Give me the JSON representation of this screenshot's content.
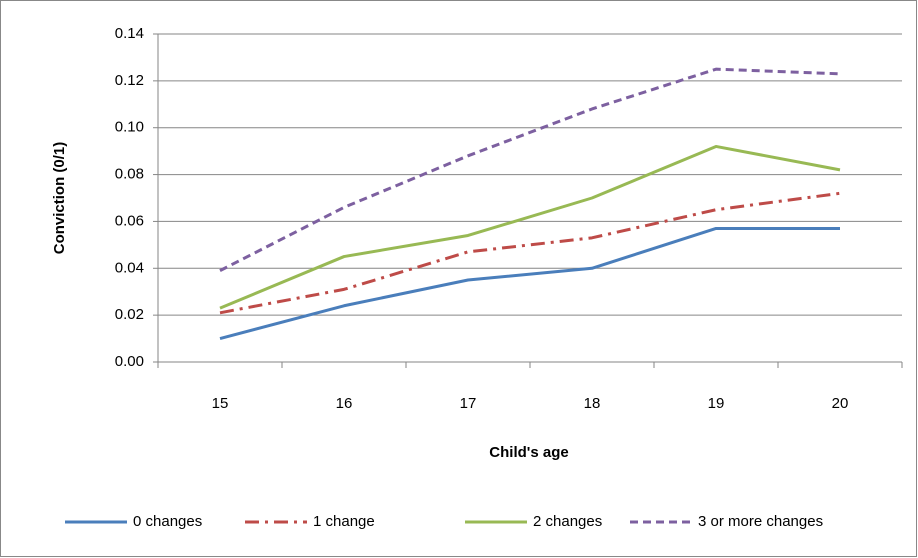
{
  "chart_data": {
    "type": "line",
    "x_label": "Child's age",
    "y_label": "Conviction (0/1)",
    "categories": [
      "15",
      "16",
      "17",
      "18",
      "19",
      "20"
    ],
    "series": [
      {
        "name": "0 changes",
        "color": "#4a7ebb",
        "dash": "solid",
        "values": [
          0.01,
          0.024,
          0.035,
          0.04,
          0.057,
          0.057
        ]
      },
      {
        "name": "1 change",
        "color": "#be4b48",
        "dash": "dashdot",
        "values": [
          0.021,
          0.031,
          0.047,
          0.053,
          0.065,
          0.072
        ]
      },
      {
        "name": "2 changes",
        "color": "#98b954",
        "dash": "solid",
        "values": [
          0.023,
          0.045,
          0.054,
          0.07,
          0.092,
          0.082
        ]
      },
      {
        "name": "3 or more changes",
        "color": "#7d60a0",
        "dash": "dashed",
        "values": [
          0.039,
          0.066,
          0.088,
          0.108,
          0.125,
          0.123
        ]
      }
    ],
    "ylim": [
      0,
      0.14
    ],
    "yticks": [
      {
        "value": 0,
        "label": "0.00"
      },
      {
        "value": 0.02,
        "label": "0.02"
      },
      {
        "value": 0.04,
        "label": "0.04"
      },
      {
        "value": 0.06,
        "label": "0.06"
      },
      {
        "value": 0.08,
        "label": "0.08"
      },
      {
        "value": 0.1,
        "label": "0.10"
      },
      {
        "value": 0.12,
        "label": "0.12"
      },
      {
        "value": 0.14,
        "label": "0.14"
      }
    ],
    "grid": true,
    "legend": "bottom"
  }
}
